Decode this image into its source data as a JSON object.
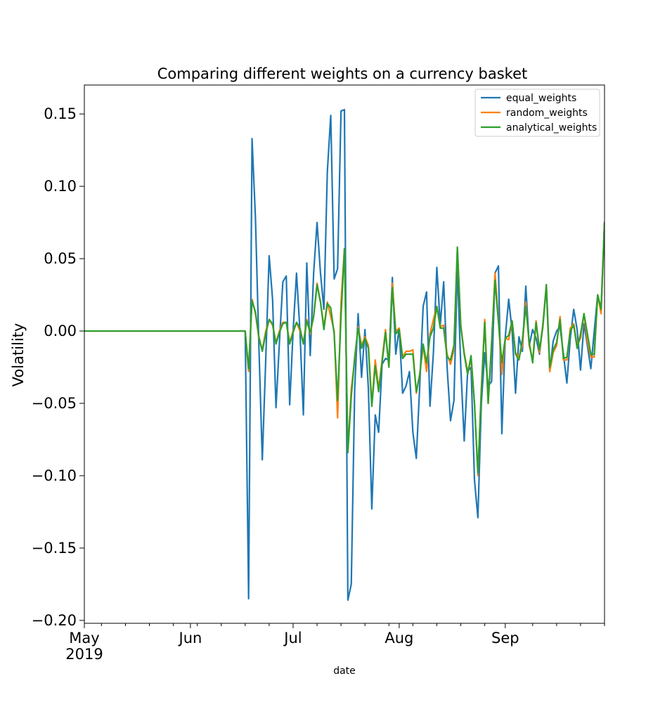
{
  "chart_data": {
    "type": "line",
    "title": "Comparing different weights on a currency basket",
    "xlabel": "date",
    "ylabel": "Volatility",
    "ylim": [
      -0.202,
      0.17
    ],
    "yticks": [
      0.15,
      0.1,
      0.05,
      0.0,
      -0.05,
      -0.1,
      -0.15,
      -0.2
    ],
    "ytick_labels": [
      "0.15",
      "0.10",
      "0.05",
      "0.00",
      "−0.05",
      "−0.10",
      "−0.15",
      "−0.20"
    ],
    "x_start": "2019-05-01",
    "x_end": "2019-09-30",
    "xlim_days": [
      0,
      152
    ],
    "x_major_ticks": [
      {
        "day": 0,
        "label": "May",
        "sublabel": "2019"
      },
      {
        "day": 31,
        "label": "Jun",
        "sublabel": ""
      },
      {
        "day": 61,
        "label": "Jul",
        "sublabel": ""
      },
      {
        "day": 92,
        "label": "Aug",
        "sublabel": ""
      },
      {
        "day": 123,
        "label": "Sep",
        "sublabel": ""
      }
    ],
    "x_minor_tick_days": [
      5,
      12,
      19,
      26,
      33,
      40,
      47,
      54,
      68,
      75,
      82,
      89,
      96,
      103,
      110,
      117,
      131,
      138,
      145,
      152
    ],
    "legend": {
      "position": "upper-right",
      "entries": [
        "equal_weights",
        "random_weights",
        "analytical_weights"
      ]
    },
    "series": [
      {
        "name": "equal_weights",
        "color": "#1f77b4",
        "x": [
          0,
          47,
          48,
          49,
          50,
          51,
          52,
          53,
          54,
          55,
          56,
          57,
          58,
          59,
          60,
          61,
          62,
          63,
          64,
          65,
          66,
          67,
          68,
          69,
          70,
          71,
          72,
          73,
          74,
          75,
          76,
          77,
          78,
          79,
          80,
          81,
          82,
          83,
          84,
          85,
          86,
          87,
          88,
          89,
          90,
          91,
          92,
          93,
          94,
          95,
          96,
          97,
          98,
          99,
          100,
          101,
          102,
          103,
          104,
          105,
          106,
          107,
          108,
          109,
          110,
          111,
          112,
          113,
          114,
          115,
          116,
          117,
          118,
          119,
          120,
          121,
          122,
          123,
          124,
          125,
          126,
          127,
          128,
          129,
          130,
          131,
          132,
          133,
          134,
          135,
          136,
          137,
          138,
          139,
          140,
          141,
          142,
          143,
          144,
          145,
          146,
          147,
          148,
          149,
          150,
          151,
          152
        ],
        "y": [
          0.0,
          0.0,
          -0.185,
          0.133,
          0.078,
          -0.01,
          -0.089,
          -0.02,
          0.052,
          0.022,
          -0.053,
          -0.008,
          0.034,
          0.038,
          -0.051,
          0.0,
          0.04,
          0.0,
          -0.058,
          0.047,
          -0.017,
          0.04,
          0.075,
          0.04,
          0.015,
          0.11,
          0.149,
          0.036,
          0.043,
          0.152,
          0.153,
          -0.186,
          -0.175,
          -0.04,
          0.012,
          -0.032,
          0.001,
          -0.04,
          -0.123,
          -0.058,
          -0.07,
          -0.023,
          -0.019,
          -0.02,
          0.037,
          -0.016,
          0.002,
          -0.043,
          -0.038,
          -0.028,
          -0.07,
          -0.088,
          -0.038,
          0.017,
          0.027,
          -0.052,
          -0.015,
          0.044,
          0.004,
          0.034,
          -0.025,
          -0.062,
          -0.048,
          0.045,
          -0.025,
          -0.076,
          -0.028,
          -0.025,
          -0.103,
          -0.129,
          -0.05,
          -0.015,
          -0.038,
          -0.035,
          0.04,
          0.045,
          -0.071,
          -0.004,
          0.022,
          0.0,
          -0.043,
          -0.004,
          -0.014,
          0.031,
          -0.01,
          0.001,
          -0.005,
          -0.016,
          0.005,
          0.03,
          -0.028,
          -0.007,
          0.0,
          0.003,
          -0.016,
          -0.036,
          -0.005,
          0.015,
          0.001,
          -0.027,
          0.005,
          -0.01,
          -0.026,
          0.0,
          0.025,
          0.015,
          0.075
        ]
      },
      {
        "name": "random_weights",
        "color": "#ff7f0e",
        "x": [
          0,
          47,
          48,
          49,
          50,
          51,
          52,
          53,
          54,
          55,
          56,
          57,
          58,
          59,
          60,
          61,
          62,
          63,
          64,
          65,
          66,
          67,
          68,
          69,
          70,
          71,
          72,
          73,
          74,
          75,
          76,
          77,
          78,
          79,
          80,
          81,
          82,
          83,
          84,
          85,
          86,
          87,
          88,
          89,
          90,
          91,
          92,
          93,
          94,
          95,
          96,
          97,
          98,
          99,
          100,
          101,
          102,
          103,
          104,
          105,
          106,
          107,
          108,
          109,
          110,
          111,
          112,
          113,
          114,
          115,
          116,
          117,
          118,
          119,
          120,
          121,
          122,
          123,
          124,
          125,
          126,
          127,
          128,
          129,
          130,
          131,
          132,
          133,
          134,
          135,
          136,
          137,
          138,
          139,
          140,
          141,
          142,
          143,
          144,
          145,
          146,
          147,
          148,
          149,
          150,
          151,
          152
        ],
        "y": [
          0.0,
          0.0,
          -0.028,
          0.022,
          0.012,
          -0.005,
          -0.013,
          0.0,
          0.008,
          0.004,
          -0.008,
          0.0,
          0.006,
          0.006,
          -0.008,
          0.0,
          0.006,
          0.0,
          -0.008,
          0.008,
          -0.002,
          0.01,
          0.033,
          0.02,
          0.003,
          0.02,
          0.01,
          0.0,
          -0.06,
          0.02,
          0.057,
          -0.083,
          -0.04,
          -0.02,
          0.003,
          -0.01,
          -0.004,
          -0.01,
          -0.05,
          -0.02,
          -0.04,
          -0.02,
          0.001,
          -0.025,
          0.033,
          0.0,
          0.002,
          -0.018,
          -0.014,
          -0.014,
          -0.013,
          -0.043,
          -0.03,
          -0.01,
          -0.028,
          -0.002,
          0.008,
          0.017,
          0.003,
          0.004,
          -0.016,
          -0.023,
          -0.013,
          0.057,
          0.004,
          -0.015,
          -0.028,
          -0.02,
          -0.05,
          -0.1,
          -0.04,
          0.008,
          -0.05,
          -0.01,
          0.04,
          0.008,
          -0.03,
          -0.005,
          -0.006,
          0.007,
          -0.015,
          -0.018,
          -0.01,
          0.02,
          -0.01,
          -0.02,
          0.007,
          -0.015,
          0.005,
          0.032,
          -0.028,
          -0.015,
          -0.01,
          0.01,
          -0.02,
          -0.02,
          0.002,
          0.005,
          -0.01,
          -0.005,
          0.012,
          -0.007,
          -0.018,
          -0.018,
          0.025,
          0.012,
          0.075
        ]
      },
      {
        "name": "analytical_weights",
        "color": "#2ca02c",
        "x": [
          0,
          47,
          48,
          49,
          50,
          51,
          52,
          53,
          54,
          55,
          56,
          57,
          58,
          59,
          60,
          61,
          62,
          63,
          64,
          65,
          66,
          67,
          68,
          69,
          70,
          71,
          72,
          73,
          74,
          75,
          76,
          77,
          78,
          79,
          80,
          81,
          82,
          83,
          84,
          85,
          86,
          87,
          88,
          89,
          90,
          91,
          92,
          93,
          94,
          95,
          96,
          97,
          98,
          99,
          100,
          101,
          102,
          103,
          104,
          105,
          106,
          107,
          108,
          109,
          110,
          111,
          112,
          113,
          114,
          115,
          116,
          117,
          118,
          119,
          120,
          121,
          122,
          123,
          124,
          125,
          126,
          127,
          128,
          129,
          130,
          131,
          132,
          133,
          134,
          135,
          136,
          137,
          138,
          139,
          140,
          141,
          142,
          143,
          144,
          145,
          146,
          147,
          148,
          149,
          150,
          151,
          152
        ],
        "y": [
          0.0,
          0.0,
          -0.026,
          0.021,
          0.013,
          -0.004,
          -0.014,
          -0.002,
          0.008,
          0.005,
          -0.009,
          -0.001,
          0.005,
          0.006,
          -0.009,
          -0.001,
          0.006,
          0.002,
          -0.009,
          0.007,
          -0.001,
          0.01,
          0.032,
          0.02,
          0.001,
          0.019,
          0.016,
          -0.002,
          -0.048,
          0.01,
          0.057,
          -0.084,
          -0.045,
          -0.018,
          0.002,
          -0.012,
          -0.005,
          -0.012,
          -0.052,
          -0.024,
          -0.042,
          -0.022,
          -0.001,
          -0.025,
          0.03,
          -0.002,
          0.001,
          -0.019,
          -0.016,
          -0.016,
          -0.016,
          -0.042,
          -0.03,
          -0.009,
          -0.022,
          -0.004,
          0.002,
          0.017,
          0.002,
          0.002,
          -0.018,
          -0.02,
          -0.01,
          0.058,
          0.003,
          -0.016,
          -0.03,
          -0.017,
          -0.05,
          -0.098,
          -0.042,
          0.006,
          -0.05,
          -0.008,
          0.035,
          0.006,
          -0.022,
          -0.005,
          -0.003,
          0.007,
          -0.016,
          -0.02,
          -0.006,
          0.017,
          -0.008,
          -0.022,
          0.006,
          -0.013,
          0.003,
          0.032,
          -0.025,
          -0.013,
          -0.008,
          0.008,
          -0.019,
          -0.018,
          0.0,
          0.004,
          -0.012,
          -0.002,
          0.012,
          -0.002,
          -0.016,
          -0.016,
          0.025,
          0.015,
          0.075
        ]
      }
    ]
  }
}
